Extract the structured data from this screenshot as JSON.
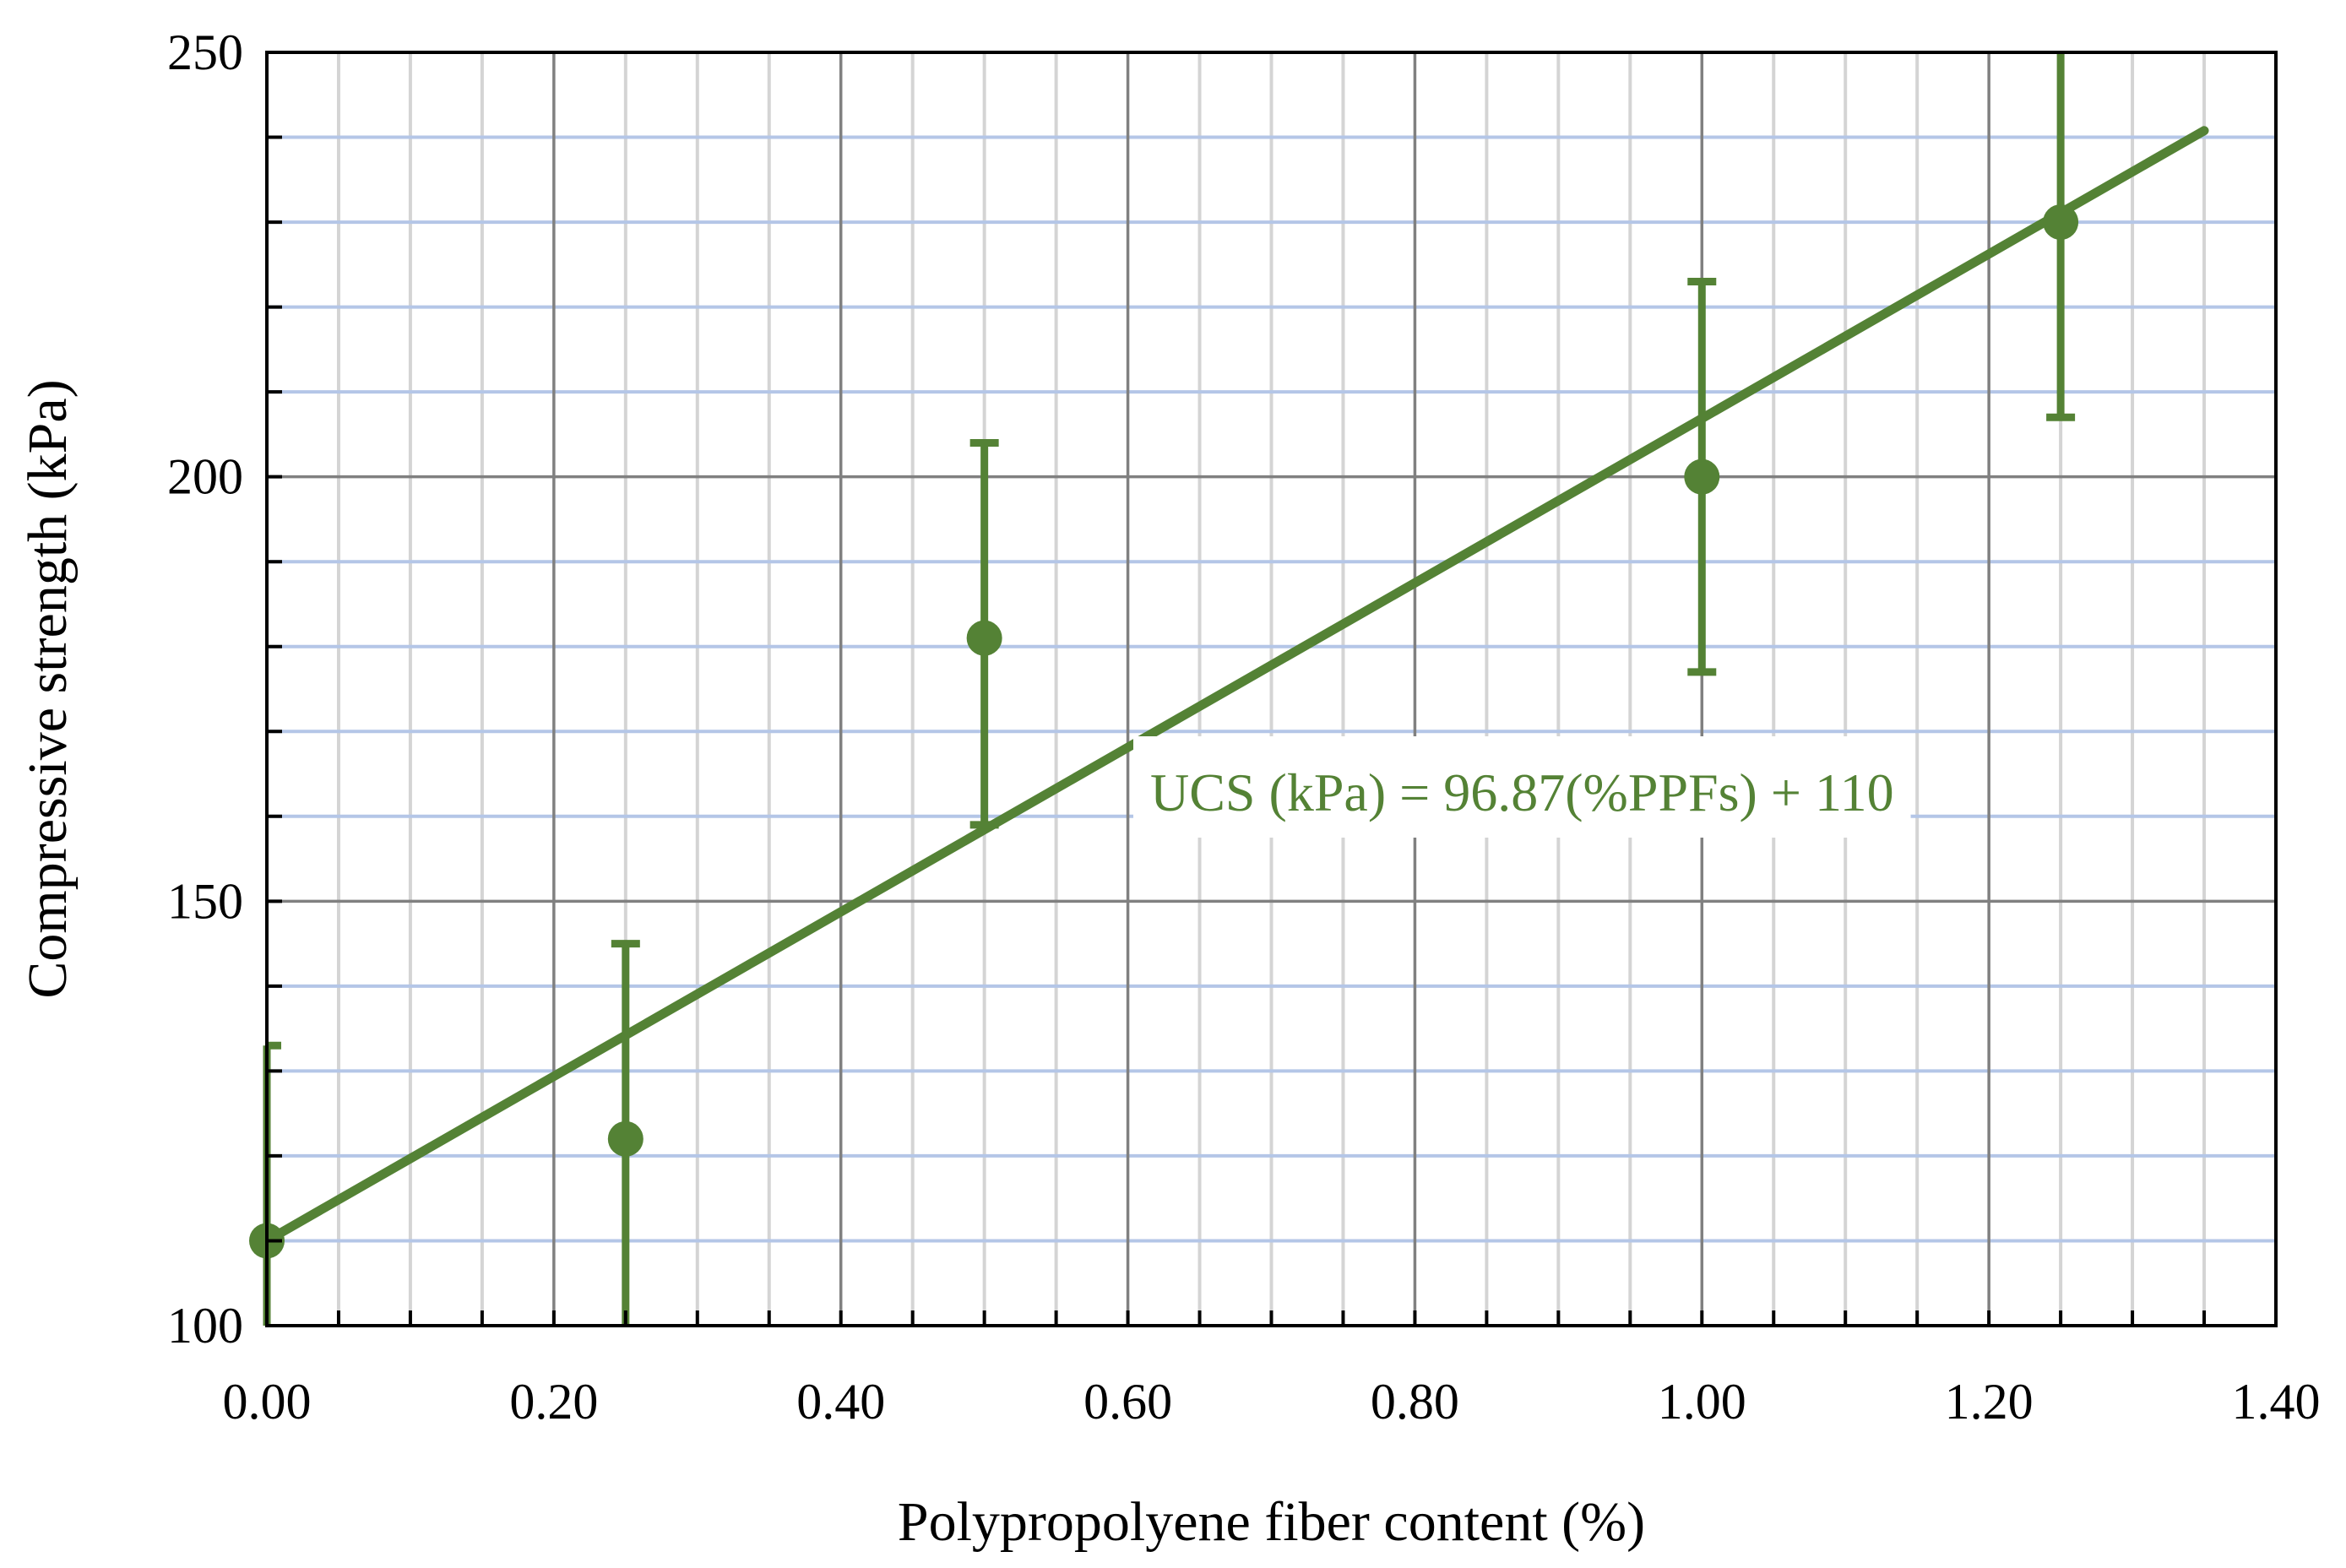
{
  "chart_data": {
    "type": "scatter",
    "title": "",
    "xlabel": "Polypropolyene fiber content (%)",
    "ylabel": "Compressive strength (kPa)",
    "xlim": [
      0,
      1.4
    ],
    "ylim": [
      100,
      250
    ],
    "x_ticks": [
      "0.00",
      "0.20",
      "0.40",
      "0.60",
      "0.80",
      "1.00",
      "1.20",
      "1.40"
    ],
    "y_ticks": [
      "100",
      "150",
      "200",
      "250"
    ],
    "x_major_step": 0.2,
    "x_minor_step": 0.05,
    "y_major_step": 50,
    "y_minor_step": 10,
    "grid": true,
    "colors": {
      "series": "#548235",
      "major_grid": "#808080",
      "minor_grid_x": "#d4d4d4",
      "minor_grid_y": "#b4c6e7",
      "axis": "#000000",
      "label_box": "#ffffff"
    },
    "series": [
      {
        "x": [
          0.0,
          0.25,
          0.5,
          1.0,
          1.25
        ],
        "y": [
          110,
          122,
          181,
          200,
          230
        ],
        "error_upper": [
          133,
          145,
          204,
          223,
          250
        ],
        "error_lower": [
          100,
          100,
          159,
          177,
          207
        ]
      }
    ],
    "trendline": {
      "slope": 96.87,
      "intercept": 110,
      "x_range": [
        0,
        1.35
      ],
      "equation_label": "UCS (kPa) = 96.87(%PPFs) + 110"
    }
  }
}
